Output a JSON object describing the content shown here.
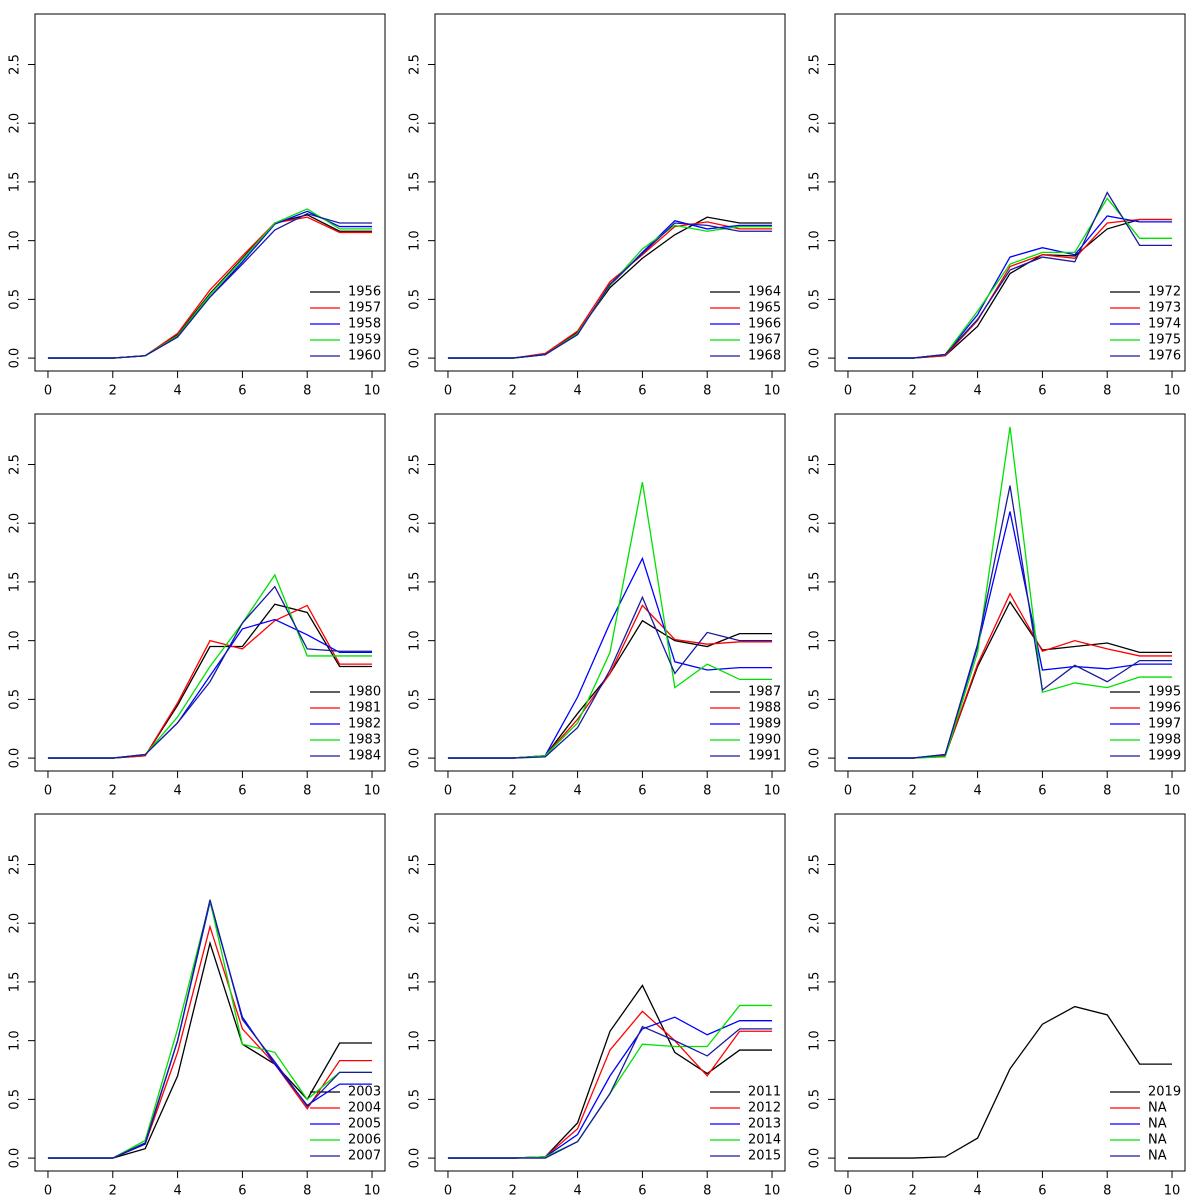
{
  "chart_data": [
    {
      "type": "line",
      "x": [
        0,
        1,
        2,
        3,
        4,
        5,
        6,
        7,
        8,
        9,
        10
      ],
      "xlim": [
        -0.4,
        10.4
      ],
      "ylim": [
        -0.11,
        2.93
      ],
      "xticks": [
        0,
        2,
        4,
        6,
        8,
        10
      ],
      "yticks": [
        {
          "value": 0,
          "label": "0.0"
        },
        0.5,
        {
          "value": 1,
          "label": "1.0"
        },
        1.5,
        {
          "value": 2,
          "label": "2.0"
        },
        2.5
      ],
      "legend": "bottom-right",
      "series": [
        {
          "name": "1956",
          "color": "#000000",
          "values": [
            0,
            0,
            0,
            0.02,
            0.2,
            0.55,
            0.85,
            1.15,
            1.22,
            1.08,
            1.08
          ]
        },
        {
          "name": "1957",
          "color": "#ff0000",
          "values": [
            0,
            0,
            0,
            0.02,
            0.21,
            0.58,
            0.87,
            1.15,
            1.2,
            1.07,
            1.07
          ]
        },
        {
          "name": "1958",
          "color": "#0000ff",
          "values": [
            0,
            0,
            0,
            0.02,
            0.18,
            0.52,
            0.82,
            1.14,
            1.25,
            1.12,
            1.12
          ]
        },
        {
          "name": "1959",
          "color": "#00e000",
          "values": [
            0,
            0,
            0,
            0.02,
            0.19,
            0.54,
            0.84,
            1.15,
            1.27,
            1.1,
            1.1
          ]
        },
        {
          "name": "1960",
          "color": "#1a1aa0",
          "values": [
            0,
            0,
            0,
            0.02,
            0.18,
            0.52,
            0.8,
            1.09,
            1.23,
            1.15,
            1.15
          ]
        }
      ]
    },
    {
      "type": "line",
      "x": [
        0,
        1,
        2,
        3,
        4,
        5,
        6,
        7,
        8,
        9,
        10
      ],
      "xlim": [
        -0.4,
        10.4
      ],
      "ylim": [
        -0.11,
        2.93
      ],
      "xticks": [
        0,
        2,
        4,
        6,
        8,
        10
      ],
      "yticks": [
        {
          "value": 0,
          "label": "0.0"
        },
        0.5,
        {
          "value": 1,
          "label": "1.0"
        },
        1.5,
        {
          "value": 2,
          "label": "2.0"
        },
        2.5
      ],
      "legend": "bottom-right",
      "series": [
        {
          "name": "1964",
          "color": "#000000",
          "values": [
            0,
            0,
            0,
            0.03,
            0.22,
            0.6,
            0.85,
            1.05,
            1.2,
            1.15,
            1.15
          ]
        },
        {
          "name": "1965",
          "color": "#ff0000",
          "values": [
            0,
            0,
            0,
            0.04,
            0.23,
            0.65,
            0.88,
            1.12,
            1.16,
            1.1,
            1.1
          ]
        },
        {
          "name": "1966",
          "color": "#0000ff",
          "values": [
            0,
            0,
            0,
            0.03,
            0.21,
            0.62,
            0.9,
            1.17,
            1.1,
            1.13,
            1.13
          ]
        },
        {
          "name": "1967",
          "color": "#00e000",
          "values": [
            0,
            0,
            0,
            0.03,
            0.21,
            0.62,
            0.93,
            1.13,
            1.08,
            1.12,
            1.12
          ]
        },
        {
          "name": "1968",
          "color": "#1a1aa0",
          "values": [
            0,
            0,
            0,
            0.03,
            0.2,
            0.63,
            0.89,
            1.15,
            1.13,
            1.08,
            1.08
          ]
        }
      ]
    },
    {
      "type": "line",
      "x": [
        0,
        1,
        2,
        3,
        4,
        5,
        6,
        7,
        8,
        9,
        10
      ],
      "xlim": [
        -0.4,
        10.4
      ],
      "ylim": [
        -0.11,
        2.93
      ],
      "xticks": [
        0,
        2,
        4,
        6,
        8,
        10
      ],
      "yticks": [
        {
          "value": 0,
          "label": "0.0"
        },
        0.5,
        {
          "value": 1,
          "label": "1.0"
        },
        1.5,
        {
          "value": 2,
          "label": "2.0"
        },
        2.5
      ],
      "legend": "bottom-right",
      "series": [
        {
          "name": "1972",
          "color": "#000000",
          "values": [
            0,
            0,
            0,
            0.02,
            0.27,
            0.72,
            0.88,
            0.87,
            1.1,
            1.18,
            1.18
          ]
        },
        {
          "name": "1973",
          "color": "#ff0000",
          "values": [
            0,
            0,
            0,
            0.02,
            0.32,
            0.78,
            0.88,
            0.85,
            1.15,
            1.18,
            1.18
          ]
        },
        {
          "name": "1974",
          "color": "#0000ff",
          "values": [
            0,
            0,
            0,
            0.03,
            0.37,
            0.86,
            0.94,
            0.88,
            1.21,
            1.16,
            1.16
          ]
        },
        {
          "name": "1975",
          "color": "#00e000",
          "values": [
            0,
            0,
            0,
            0.03,
            0.4,
            0.8,
            0.9,
            0.9,
            1.36,
            1.02,
            1.02
          ]
        },
        {
          "name": "1976",
          "color": "#1a1aa0",
          "values": [
            0,
            0,
            0,
            0.03,
            0.33,
            0.75,
            0.86,
            0.82,
            1.41,
            0.96,
            0.96
          ]
        }
      ]
    },
    {
      "type": "line",
      "x": [
        0,
        1,
        2,
        3,
        4,
        5,
        6,
        7,
        8,
        9,
        10
      ],
      "xlim": [
        -0.4,
        10.4
      ],
      "ylim": [
        -0.11,
        2.93
      ],
      "xticks": [
        0,
        2,
        4,
        6,
        8,
        10
      ],
      "yticks": [
        {
          "value": 0,
          "label": "0.0"
        },
        0.5,
        {
          "value": 1,
          "label": "1.0"
        },
        1.5,
        {
          "value": 2,
          "label": "2.0"
        },
        2.5
      ],
      "legend": "bottom-right",
      "series": [
        {
          "name": "1980",
          "color": "#000000",
          "values": [
            0,
            0,
            0,
            0.02,
            0.45,
            0.95,
            0.95,
            1.31,
            1.24,
            0.78,
            0.78
          ]
        },
        {
          "name": "1981",
          "color": "#ff0000",
          "values": [
            0,
            0,
            0,
            0.02,
            0.47,
            1.0,
            0.93,
            1.17,
            1.3,
            0.8,
            0.8
          ]
        },
        {
          "name": "1982",
          "color": "#0000ff",
          "values": [
            0,
            0,
            0,
            0.03,
            0.3,
            0.7,
            1.1,
            1.18,
            1.05,
            0.9,
            0.9
          ]
        },
        {
          "name": "1983",
          "color": "#00e000",
          "values": [
            0,
            0,
            0,
            0.03,
            0.35,
            0.78,
            1.15,
            1.56,
            0.87,
            0.87,
            0.87
          ]
        },
        {
          "name": "1984",
          "color": "#1a1aa0",
          "values": [
            0,
            0,
            0,
            0.03,
            0.3,
            0.65,
            1.15,
            1.46,
            0.93,
            0.91,
            0.91
          ]
        }
      ]
    },
    {
      "type": "line",
      "x": [
        0,
        1,
        2,
        3,
        4,
        5,
        6,
        7,
        8,
        9,
        10
      ],
      "xlim": [
        -0.4,
        10.4
      ],
      "ylim": [
        -0.11,
        2.93
      ],
      "xticks": [
        0,
        2,
        4,
        6,
        8,
        10
      ],
      "yticks": [
        {
          "value": 0,
          "label": "0.0"
        },
        0.5,
        {
          "value": 1,
          "label": "1.0"
        },
        1.5,
        {
          "value": 2,
          "label": "2.0"
        },
        2.5
      ],
      "legend": "bottom-right",
      "series": [
        {
          "name": "1987",
          "color": "#000000",
          "values": [
            0,
            0,
            0,
            0.02,
            0.38,
            0.72,
            1.17,
            1.0,
            0.95,
            1.06,
            1.06
          ]
        },
        {
          "name": "1988",
          "color": "#ff0000",
          "values": [
            0,
            0,
            0,
            0.02,
            0.33,
            0.72,
            1.3,
            1.01,
            0.97,
            0.99,
            0.99
          ]
        },
        {
          "name": "1989",
          "color": "#0000ff",
          "values": [
            0,
            0,
            0,
            0.02,
            0.52,
            1.15,
            1.7,
            0.82,
            0.75,
            0.77,
            0.77
          ]
        },
        {
          "name": "1990",
          "color": "#00e000",
          "values": [
            0,
            0,
            0,
            0.02,
            0.3,
            0.9,
            2.35,
            0.6,
            0.8,
            0.67,
            0.67
          ]
        },
        {
          "name": "1991",
          "color": "#1a1aa0",
          "values": [
            0,
            0,
            0,
            0.01,
            0.26,
            0.75,
            1.37,
            0.72,
            1.07,
            1.0,
            1.0
          ]
        }
      ]
    },
    {
      "type": "line",
      "x": [
        0,
        1,
        2,
        3,
        4,
        5,
        6,
        7,
        8,
        9,
        10
      ],
      "xlim": [
        -0.4,
        10.4
      ],
      "ylim": [
        -0.11,
        2.93
      ],
      "xticks": [
        0,
        2,
        4,
        6,
        8,
        10
      ],
      "yticks": [
        {
          "value": 0,
          "label": "0.0"
        },
        0.5,
        {
          "value": 1,
          "label": "1.0"
        },
        1.5,
        {
          "value": 2,
          "label": "2.0"
        },
        2.5
      ],
      "legend": "bottom-right",
      "series": [
        {
          "name": "1995",
          "color": "#000000",
          "values": [
            0,
            0,
            0,
            0.02,
            0.78,
            1.33,
            0.92,
            0.95,
            0.98,
            0.9,
            0.9
          ]
        },
        {
          "name": "1996",
          "color": "#ff0000",
          "values": [
            0,
            0,
            0,
            0.02,
            0.8,
            1.4,
            0.91,
            1.0,
            0.93,
            0.87,
            0.87
          ]
        },
        {
          "name": "1997",
          "color": "#0000ff",
          "values": [
            0,
            0,
            0,
            0.03,
            0.95,
            2.1,
            0.75,
            0.78,
            0.76,
            0.8,
            0.8
          ]
        },
        {
          "name": "1998",
          "color": "#00e000",
          "values": [
            0,
            0,
            0,
            0.01,
            0.9,
            2.82,
            0.56,
            0.64,
            0.6,
            0.69,
            0.69
          ]
        },
        {
          "name": "1999",
          "color": "#1a1aa0",
          "values": [
            0,
            0,
            0,
            0.03,
            0.97,
            2.32,
            0.58,
            0.79,
            0.65,
            0.83,
            0.83
          ]
        }
      ]
    },
    {
      "type": "line",
      "x": [
        0,
        1,
        2,
        3,
        4,
        5,
        6,
        7,
        8,
        9,
        10
      ],
      "xlim": [
        -0.4,
        10.4
      ],
      "ylim": [
        -0.11,
        2.93
      ],
      "xticks": [
        0,
        2,
        4,
        6,
        8,
        10
      ],
      "yticks": [
        {
          "value": 0,
          "label": "0.0"
        },
        0.5,
        {
          "value": 1,
          "label": "1.0"
        },
        1.5,
        {
          "value": 2,
          "label": "2.0"
        },
        2.5
      ],
      "legend": "bottom-right",
      "series": [
        {
          "name": "2003",
          "color": "#000000",
          "values": [
            0,
            0,
            0,
            0.08,
            0.7,
            1.83,
            0.97,
            0.8,
            0.5,
            0.98,
            0.98
          ]
        },
        {
          "name": "2004",
          "color": "#ff0000",
          "values": [
            0,
            0,
            0,
            0.12,
            0.9,
            1.97,
            1.1,
            0.8,
            0.42,
            0.83,
            0.83
          ]
        },
        {
          "name": "2005",
          "color": "#0000ff",
          "values": [
            0,
            0,
            0,
            0.12,
            1.0,
            2.18,
            1.2,
            0.8,
            0.45,
            0.63,
            0.63
          ]
        },
        {
          "name": "2006",
          "color": "#00e000",
          "values": [
            0,
            0,
            0,
            0.15,
            1.1,
            2.19,
            0.97,
            0.9,
            0.5,
            0.73,
            0.73
          ]
        },
        {
          "name": "2007",
          "color": "#1a1aa0",
          "values": [
            0,
            0,
            0,
            0.13,
            1.0,
            2.2,
            1.18,
            0.82,
            0.44,
            0.73,
            0.73
          ]
        }
      ]
    },
    {
      "type": "line",
      "x": [
        0,
        1,
        2,
        3,
        4,
        5,
        6,
        7,
        8,
        9,
        10
      ],
      "xlim": [
        -0.4,
        10.4
      ],
      "ylim": [
        -0.11,
        2.93
      ],
      "xticks": [
        0,
        2,
        4,
        6,
        8,
        10
      ],
      "yticks": [
        {
          "value": 0,
          "label": "0.0"
        },
        0.5,
        {
          "value": 1,
          "label": "1.0"
        },
        1.5,
        {
          "value": 2,
          "label": "2.0"
        },
        2.5
      ],
      "legend": "bottom-right",
      "series": [
        {
          "name": "2011",
          "color": "#000000",
          "values": [
            0,
            0,
            0,
            0.01,
            0.3,
            1.08,
            1.47,
            0.9,
            0.72,
            0.92,
            0.92
          ]
        },
        {
          "name": "2012",
          "color": "#ff0000",
          "values": [
            0,
            0,
            0,
            0.01,
            0.25,
            0.92,
            1.25,
            1.0,
            0.7,
            1.08,
            1.08
          ]
        },
        {
          "name": "2013",
          "color": "#0000ff",
          "values": [
            0,
            0,
            0,
            0.01,
            0.2,
            0.7,
            1.1,
            1.2,
            1.05,
            1.17,
            1.17
          ]
        },
        {
          "name": "2014",
          "color": "#00e000",
          "values": [
            0,
            0,
            0,
            0.01,
            0.14,
            0.55,
            0.97,
            0.95,
            0.95,
            1.3,
            1.3
          ]
        },
        {
          "name": "2015",
          "color": "#1a1aa0",
          "values": [
            0,
            0,
            0,
            0.0,
            0.14,
            0.55,
            1.12,
            1.0,
            0.87,
            1.1,
            1.1
          ]
        }
      ]
    },
    {
      "type": "line",
      "x": [
        0,
        1,
        2,
        3,
        4,
        5,
        6,
        7,
        8,
        9,
        10
      ],
      "xlim": [
        -0.4,
        10.4
      ],
      "ylim": [
        -0.11,
        2.93
      ],
      "xticks": [
        0,
        2,
        4,
        6,
        8,
        10
      ],
      "yticks": [
        {
          "value": 0,
          "label": "0.0"
        },
        0.5,
        {
          "value": 1,
          "label": "1.0"
        },
        1.5,
        {
          "value": 2,
          "label": "2.0"
        },
        2.5
      ],
      "legend": "bottom-right",
      "series": [
        {
          "name": "2019",
          "color": "#000000",
          "values": [
            0,
            0,
            0,
            0.01,
            0.17,
            0.76,
            1.14,
            1.29,
            1.22,
            0.8,
            0.8
          ]
        },
        {
          "name": "NA",
          "color": "#ff0000",
          "values": [
            null,
            null,
            null,
            null,
            null,
            null,
            null,
            null,
            null,
            null,
            null
          ]
        },
        {
          "name": "NA",
          "color": "#0000ff",
          "values": [
            null,
            null,
            null,
            null,
            null,
            null,
            null,
            null,
            null,
            null,
            null
          ]
        },
        {
          "name": "NA",
          "color": "#00e000",
          "values": [
            null,
            null,
            null,
            null,
            null,
            null,
            null,
            null,
            null,
            null,
            null
          ]
        },
        {
          "name": "NA",
          "color": "#1a1aa0",
          "values": [
            null,
            null,
            null,
            null,
            null,
            null,
            null,
            null,
            null,
            null,
            null
          ]
        }
      ]
    }
  ]
}
